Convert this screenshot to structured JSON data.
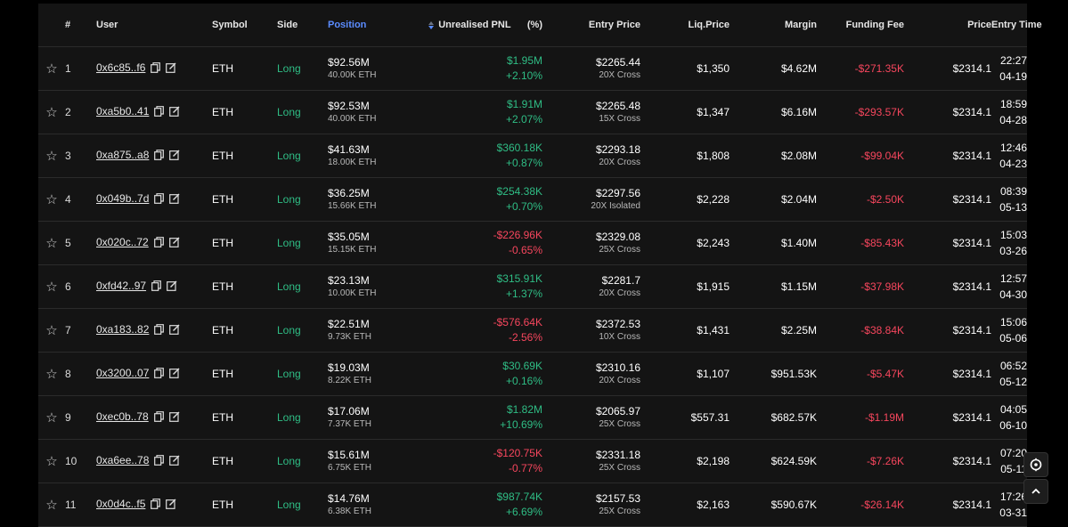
{
  "headers": {
    "num": "#",
    "user": "User",
    "symbol": "Symbol",
    "side": "Side",
    "position": "Position",
    "unrealised_pnl": "Unrealised PNL",
    "pct": "(%)",
    "entry_price": "Entry Price",
    "liq_price": "Liq.Price",
    "margin": "Margin",
    "funding_fee": "Funding Fee",
    "price": "Price",
    "entry_time": "Entry Time"
  },
  "colors": {
    "positive": "#2fbd85",
    "negative": "#f6465d",
    "accent": "#5b8cff"
  },
  "icons": {
    "star": "star-icon",
    "copy": "copy-icon",
    "edit": "edit-icon",
    "sort": "sort-icon",
    "settings": "settings-icon",
    "scroll_top": "chevron-up-icon"
  },
  "rows": [
    {
      "num": "1",
      "user": "0x6c85..f6",
      "symbol": "ETH",
      "side": "Long",
      "position": "$92.56M",
      "position_qty": "40.00K ETH",
      "pnl": "$1.95M",
      "pnl_pct": "+2.10%",
      "pnl_dir": "pos",
      "entry_price": "$2265.44",
      "leverage": "20X Cross",
      "liq_price": "$1,350",
      "margin": "$4.62M",
      "funding_fee": "-$271.35K",
      "price": "$2314.1",
      "time": "22:27",
      "date": "04-19"
    },
    {
      "num": "2",
      "user": "0xa5b0..41",
      "symbol": "ETH",
      "side": "Long",
      "position": "$92.53M",
      "position_qty": "40.00K ETH",
      "pnl": "$1.91M",
      "pnl_pct": "+2.07%",
      "pnl_dir": "pos",
      "entry_price": "$2265.48",
      "leverage": "15X Cross",
      "liq_price": "$1,347",
      "margin": "$6.16M",
      "funding_fee": "-$293.57K",
      "price": "$2314.1",
      "time": "18:59",
      "date": "04-28"
    },
    {
      "num": "3",
      "user": "0xa875..a8",
      "symbol": "ETH",
      "side": "Long",
      "position": "$41.63M",
      "position_qty": "18.00K ETH",
      "pnl": "$360.18K",
      "pnl_pct": "+0.87%",
      "pnl_dir": "pos",
      "entry_price": "$2293.18",
      "leverage": "20X Cross",
      "liq_price": "$1,808",
      "margin": "$2.08M",
      "funding_fee": "-$99.04K",
      "price": "$2314.1",
      "time": "12:46",
      "date": "04-23"
    },
    {
      "num": "4",
      "user": "0x049b..7d",
      "symbol": "ETH",
      "side": "Long",
      "position": "$36.25M",
      "position_qty": "15.66K ETH",
      "pnl": "$254.38K",
      "pnl_pct": "+0.70%",
      "pnl_dir": "pos",
      "entry_price": "$2297.56",
      "leverage": "20X Isolated",
      "liq_price": "$2,228",
      "margin": "$2.04M",
      "funding_fee": "-$2.50K",
      "price": "$2314.1",
      "time": "08:39",
      "date": "05-13"
    },
    {
      "num": "5",
      "user": "0x020c..72",
      "symbol": "ETH",
      "side": "Long",
      "position": "$35.05M",
      "position_qty": "15.15K ETH",
      "pnl": "-$226.96K",
      "pnl_pct": "-0.65%",
      "pnl_dir": "neg",
      "entry_price": "$2329.08",
      "leverage": "25X Cross",
      "liq_price": "$2,243",
      "margin": "$1.40M",
      "funding_fee": "-$85.43K",
      "price": "$2314.1",
      "time": "15:03",
      "date": "03-26"
    },
    {
      "num": "6",
      "user": "0xfd42..97",
      "symbol": "ETH",
      "side": "Long",
      "position": "$23.13M",
      "position_qty": "10.00K ETH",
      "pnl": "$315.91K",
      "pnl_pct": "+1.37%",
      "pnl_dir": "pos",
      "entry_price": "$2281.7",
      "leverage": "20X Cross",
      "liq_price": "$1,915",
      "margin": "$1.15M",
      "funding_fee": "-$37.98K",
      "price": "$2314.1",
      "time": "12:57",
      "date": "04-30"
    },
    {
      "num": "7",
      "user": "0xa183..82",
      "symbol": "ETH",
      "side": "Long",
      "position": "$22.51M",
      "position_qty": "9.73K ETH",
      "pnl": "-$576.64K",
      "pnl_pct": "-2.56%",
      "pnl_dir": "neg",
      "entry_price": "$2372.53",
      "leverage": "10X Cross",
      "liq_price": "$1,431",
      "margin": "$2.25M",
      "funding_fee": "-$38.84K",
      "price": "$2314.1",
      "time": "15:06",
      "date": "05-06"
    },
    {
      "num": "8",
      "user": "0x3200..07",
      "symbol": "ETH",
      "side": "Long",
      "position": "$19.03M",
      "position_qty": "8.22K ETH",
      "pnl": "$30.69K",
      "pnl_pct": "+0.16%",
      "pnl_dir": "pos",
      "entry_price": "$2310.16",
      "leverage": "20X Cross",
      "liq_price": "$1,107",
      "margin": "$951.53K",
      "funding_fee": "-$5.47K",
      "price": "$2314.1",
      "time": "06:52",
      "date": "05-12"
    },
    {
      "num": "9",
      "user": "0xec0b..78",
      "symbol": "ETH",
      "side": "Long",
      "position": "$17.06M",
      "position_qty": "7.37K ETH",
      "pnl": "$1.82M",
      "pnl_pct": "+10.69%",
      "pnl_dir": "pos",
      "entry_price": "$2065.97",
      "leverage": "25X Cross",
      "liq_price": "$557.31",
      "margin": "$682.57K",
      "funding_fee": "-$1.19M",
      "price": "$2314.1",
      "time": "04:05",
      "date": "06-10"
    },
    {
      "num": "10",
      "user": "0xa6ee..78",
      "symbol": "ETH",
      "side": "Long",
      "position": "$15.61M",
      "position_qty": "6.75K ETH",
      "pnl": "-$120.75K",
      "pnl_pct": "-0.77%",
      "pnl_dir": "neg",
      "entry_price": "$2331.18",
      "leverage": "25X Cross",
      "liq_price": "$2,198",
      "margin": "$624.59K",
      "funding_fee": "-$7.26K",
      "price": "$2314.1",
      "time": "07:20",
      "date": "05-11"
    },
    {
      "num": "11",
      "user": "0x0d4c..f5",
      "symbol": "ETH",
      "side": "Long",
      "position": "$14.76M",
      "position_qty": "6.38K ETH",
      "pnl": "$987.74K",
      "pnl_pct": "+6.69%",
      "pnl_dir": "pos",
      "entry_price": "$2157.53",
      "leverage": "25X Cross",
      "liq_price": "$2,163",
      "margin": "$590.67K",
      "funding_fee": "-$26.14K",
      "price": "$2314.1",
      "time": "17:26",
      "date": "03-31"
    }
  ]
}
